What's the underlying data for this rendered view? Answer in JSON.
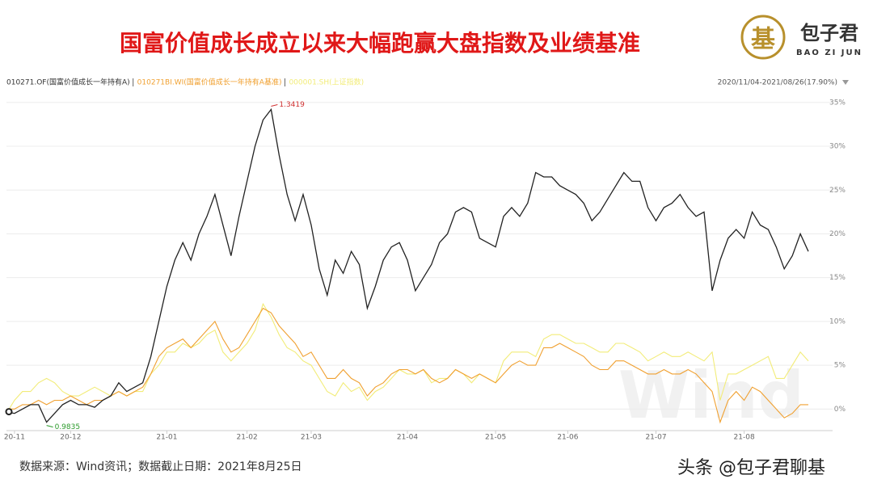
{
  "header": {
    "title": "国富价值成长成立以来大幅跑赢大盘指数及业绩基准"
  },
  "logo": {
    "mark": "基",
    "name": "包子君",
    "sub": "BAO ZI JUN"
  },
  "date_range": "2020/11/04-2021/08/26(17.90%)",
  "source": "数据来源：Wind资讯；数据截止日期：2021年8月25日",
  "watermark": "头条 @包子君聊基",
  "brand": "Wind",
  "chart_data": {
    "type": "line",
    "categories": [
      null,
      "20-11",
      null,
      null,
      null,
      null,
      null,
      null,
      "20-12",
      null,
      null,
      null,
      null,
      null,
      null,
      null,
      null,
      null,
      null,
      null,
      "21-01",
      null,
      null,
      null,
      null,
      null,
      null,
      null,
      null,
      null,
      "21-02",
      null,
      null,
      null,
      null,
      null,
      null,
      null,
      "21-03",
      null,
      null,
      null,
      null,
      null,
      null,
      null,
      null,
      null,
      null,
      null,
      "21-04",
      null,
      null,
      null,
      null,
      null,
      null,
      null,
      null,
      null,
      null,
      "21-05",
      null,
      null,
      null,
      null,
      null,
      null,
      null,
      null,
      "21-06",
      null,
      null,
      null,
      null,
      null,
      null,
      null,
      null,
      null,
      null,
      "21-07",
      null,
      null,
      null,
      null,
      null,
      null,
      null,
      null,
      null,
      null,
      "21-08",
      null,
      null,
      null,
      null,
      null,
      null,
      null,
      null
    ],
    "series": [
      {
        "name": "010271.OF(国富价值成长一年持有A)",
        "color": "#222222",
        "values": [
          -0.3,
          -0.5,
          0,
          0.5,
          0.5,
          -1.5,
          -0.5,
          0.5,
          1,
          0.5,
          0.5,
          0.2,
          1,
          1.5,
          3,
          2,
          2.5,
          3,
          6,
          10,
          14,
          17,
          19,
          17,
          20,
          22,
          24.5,
          21,
          17.5,
          22,
          26,
          30,
          33,
          34.2,
          29,
          24.5,
          21.5,
          24.5,
          21,
          16,
          13,
          17,
          15.5,
          18,
          16.5,
          11.5,
          14,
          17,
          18.5,
          19,
          17,
          13.5,
          15,
          16.5,
          19,
          20,
          22.5,
          23,
          22.5,
          19.5,
          19,
          18.5,
          22,
          23,
          22,
          23.5,
          27,
          26.5,
          26.5,
          25.5,
          25,
          24.5,
          23.5,
          21.5,
          22.5,
          24,
          25.5,
          27,
          26,
          26,
          23,
          21.5,
          23,
          23.5,
          24.5,
          23,
          22,
          22.5,
          13.5,
          17,
          19.5,
          20.5,
          19.5,
          22.5,
          21,
          20.5,
          18.5,
          16,
          17.5,
          20,
          18
        ]
      },
      {
        "name": "010271BI.WI(国富价值成长一年持有A基准)",
        "color": "#f0a030",
        "values": [
          0,
          0,
          0.5,
          0.5,
          1,
          0.5,
          1,
          1,
          1.5,
          1,
          0.5,
          1,
          1,
          1.5,
          2,
          1.5,
          2,
          2.5,
          4,
          6,
          7,
          7.5,
          8,
          7,
          8,
          9,
          10,
          8,
          6.5,
          7,
          8.5,
          10,
          11.5,
          11,
          9.5,
          8.5,
          7.5,
          6,
          6.5,
          5,
          3.5,
          3.5,
          4.5,
          3.5,
          3,
          1.5,
          2.5,
          3,
          4,
          4.5,
          4.5,
          4,
          4.5,
          3.5,
          3,
          3.5,
          4.5,
          4,
          3.5,
          4,
          3.5,
          3,
          4,
          5,
          5.5,
          5,
          5,
          7,
          7,
          7.5,
          7,
          6.5,
          6,
          5,
          4.5,
          4.5,
          5.5,
          5.5,
          5,
          4.5,
          4,
          4,
          4.5,
          4,
          4,
          4.5,
          4,
          3,
          2,
          -1.5,
          1,
          2,
          1,
          2.5,
          2,
          1,
          0,
          -1,
          -0.5,
          0.5,
          0.5
        ]
      },
      {
        "name": "000001.SH(上证指数)",
        "color": "#f2ec78",
        "values": [
          -0.5,
          1,
          2,
          2,
          3,
          3.5,
          3,
          2,
          1.5,
          1.5,
          2,
          2.5,
          2,
          1.5,
          2,
          1.5,
          2,
          2,
          4,
          5,
          6.5,
          6.5,
          7.5,
          7,
          7.5,
          8.5,
          9,
          6.5,
          5.5,
          6.5,
          7.5,
          9,
          12,
          10.5,
          8.5,
          7,
          6.5,
          5.5,
          5,
          3.5,
          2,
          1.5,
          3,
          2,
          2.5,
          1,
          2,
          2.5,
          3.5,
          4.5,
          4,
          4,
          4.5,
          3,
          3.5,
          3.5,
          4.5,
          4,
          3,
          4,
          3.5,
          3,
          5.5,
          6.5,
          6.5,
          6.5,
          6,
          8,
          8.5,
          8.5,
          8,
          7.5,
          7.5,
          7,
          6.5,
          6.5,
          7.5,
          7.5,
          7,
          6.5,
          5.5,
          6,
          6.5,
          6,
          6,
          6.5,
          6,
          5.5,
          6.5,
          1,
          4,
          4,
          4.5,
          5,
          5.5,
          6,
          3.5,
          3.5,
          5,
          6.5,
          5.5
        ]
      }
    ],
    "annotations": [
      {
        "text": "1.3419",
        "color": "#d03030",
        "at": "max"
      },
      {
        "text": "0.9835",
        "color": "#2a9a2a",
        "at": "min"
      }
    ],
    "ylim": [
      -2,
      36
    ],
    "yticks": [
      {
        "value": 0,
        "label": "0%"
      },
      {
        "value": 5,
        "label": "5%"
      },
      {
        "value": 10,
        "label": "10%"
      },
      {
        "value": 15,
        "label": "15%"
      },
      {
        "value": 20,
        "label": "20%"
      },
      {
        "value": 25,
        "label": "25%"
      },
      {
        "value": 30,
        "label": "30%"
      },
      {
        "value": 35,
        "label": "35%"
      }
    ],
    "grid": true
  }
}
